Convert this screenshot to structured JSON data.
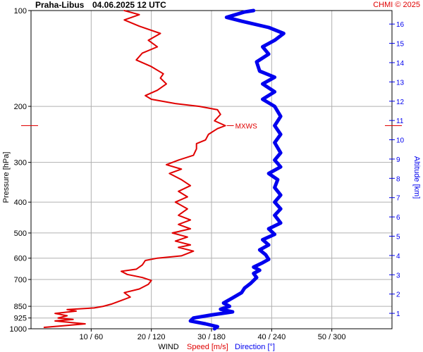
{
  "header": {
    "station": "Praha-Libus",
    "datetime": "04.06.2025 12 UTC",
    "credit": "CHMI © 2025"
  },
  "colors": {
    "speed": "#e00000",
    "direction": "#0000ee",
    "grid": "#b0b0b0",
    "axis": "#000000"
  },
  "chart_data": {
    "type": "line",
    "y_axis": {
      "label": "Pressure [hPa]",
      "scale": "log",
      "range": [
        1000,
        100
      ],
      "ticks": [
        100,
        200,
        300,
        400,
        500,
        600,
        700,
        850,
        925,
        1000
      ],
      "tick_labels": [
        "100",
        "200",
        "300",
        "400",
        "500",
        "600",
        "700",
        "850",
        "925",
        "1000"
      ]
    },
    "x_axis": {
      "label": "WIND",
      "range": [
        0,
        60
      ],
      "ticks": [
        10,
        20,
        30,
        40,
        50
      ],
      "tick_labels": [
        "10 / 60",
        "20 / 120",
        "30 / 180",
        "40 / 240",
        "50 / 300"
      ]
    },
    "y2_axis": {
      "label": "Altitude [km]",
      "range_km": [
        0.2,
        16.7
      ],
      "ticks": [
        1,
        2,
        3,
        4,
        5,
        6,
        7,
        8,
        9,
        10,
        11,
        12,
        13,
        14,
        15,
        16
      ],
      "tick_labels": [
        "1",
        "2",
        "3",
        "4",
        "5",
        "6",
        "7",
        "8",
        "9",
        "10",
        "11",
        "12",
        "13",
        "14",
        "15",
        "16"
      ]
    },
    "legend": {
      "speed_label": "Speed [m/s]",
      "direction_label": "Direction [°]"
    },
    "max_wind": {
      "label": "MXWS",
      "pressure": 230,
      "speed": 32.3
    },
    "series": [
      {
        "name": "Speed [m/s]",
        "color": "#e00000",
        "points": [
          [
            2.2,
            990
          ],
          [
            5.0,
            980
          ],
          [
            9.0,
            965
          ],
          [
            6.5,
            955
          ],
          [
            4.0,
            945
          ],
          [
            7.0,
            935
          ],
          [
            4.5,
            925
          ],
          [
            6.0,
            910
          ],
          [
            4.0,
            895
          ],
          [
            7.5,
            880
          ],
          [
            6.0,
            870
          ],
          [
            10.5,
            860
          ],
          [
            12.0,
            850
          ],
          [
            13.5,
            835
          ],
          [
            15.0,
            815
          ],
          [
            16.5,
            795
          ],
          [
            15.5,
            770
          ],
          [
            18.0,
            750
          ],
          [
            19.5,
            725
          ],
          [
            20.0,
            705
          ],
          [
            18.5,
            690
          ],
          [
            16.0,
            675
          ],
          [
            15.0,
            660
          ],
          [
            17.5,
            650
          ],
          [
            18.5,
            630
          ],
          [
            19.0,
            610
          ],
          [
            21.0,
            600
          ],
          [
            25.0,
            590
          ],
          [
            27.0,
            570
          ],
          [
            24.5,
            555
          ],
          [
            26.5,
            545
          ],
          [
            24.0,
            530
          ],
          [
            26.0,
            515
          ],
          [
            23.5,
            500
          ],
          [
            26.5,
            485
          ],
          [
            24.5,
            470
          ],
          [
            26.5,
            455
          ],
          [
            24.5,
            440
          ],
          [
            26.0,
            420
          ],
          [
            24.0,
            400
          ],
          [
            26.0,
            385
          ],
          [
            24.5,
            370
          ],
          [
            26.5,
            355
          ],
          [
            25.0,
            340
          ],
          [
            23.0,
            325
          ],
          [
            25.0,
            315
          ],
          [
            22.5,
            305
          ],
          [
            24.5,
            295
          ],
          [
            27.0,
            285
          ],
          [
            27.5,
            272
          ],
          [
            27.5,
            262
          ],
          [
            29.0,
            255
          ],
          [
            29.5,
            245
          ],
          [
            31.0,
            235
          ],
          [
            32.3,
            230
          ],
          [
            30.5,
            222
          ],
          [
            31.5,
            212
          ],
          [
            31.0,
            205
          ],
          [
            28.0,
            200
          ],
          [
            24.0,
            196
          ],
          [
            20.0,
            190
          ],
          [
            19.0,
            185
          ],
          [
            21.0,
            178
          ],
          [
            22.5,
            170
          ],
          [
            21.5,
            163
          ],
          [
            22.0,
            158
          ],
          [
            20.0,
            150
          ],
          [
            17.5,
            143
          ],
          [
            18.5,
            136
          ],
          [
            21.0,
            130
          ],
          [
            19.5,
            124
          ],
          [
            21.5,
            118
          ],
          [
            18.0,
            112
          ],
          [
            15.5,
            107
          ],
          [
            18.0,
            103
          ],
          [
            15.5,
            100
          ]
        ]
      },
      {
        "name": "Direction [°]",
        "color": "#0000ee",
        "points": [
          [
            30.5,
            1000
          ],
          [
            31.0,
            985
          ],
          [
            29.0,
            965
          ],
          [
            26.5,
            945
          ],
          [
            27.0,
            925
          ],
          [
            30.0,
            905
          ],
          [
            33.5,
            885
          ],
          [
            31.5,
            868
          ],
          [
            33.0,
            850
          ],
          [
            32.0,
            830
          ],
          [
            33.5,
            800
          ],
          [
            35.0,
            770
          ],
          [
            35.5,
            745
          ],
          [
            36.5,
            720
          ],
          [
            37.5,
            690
          ],
          [
            37.0,
            670
          ],
          [
            38.0,
            655
          ],
          [
            37.0,
            640
          ],
          [
            38.5,
            620
          ],
          [
            39.5,
            605
          ],
          [
            39.0,
            585
          ],
          [
            38.0,
            565
          ],
          [
            39.5,
            545
          ],
          [
            38.5,
            525
          ],
          [
            40.5,
            505
          ],
          [
            39.5,
            485
          ],
          [
            41.5,
            465
          ],
          [
            40.5,
            440
          ],
          [
            41.5,
            420
          ],
          [
            40.5,
            400
          ],
          [
            41.5,
            380
          ],
          [
            40.5,
            360
          ],
          [
            41.0,
            340
          ],
          [
            39.5,
            325
          ],
          [
            41.5,
            310
          ],
          [
            40.5,
            295
          ],
          [
            41.5,
            280
          ],
          [
            40.5,
            260
          ],
          [
            41.5,
            245
          ],
          [
            40.5,
            230
          ],
          [
            41.5,
            215
          ],
          [
            40.5,
            200
          ],
          [
            38.5,
            190
          ],
          [
            40.5,
            180
          ],
          [
            38.5,
            170
          ],
          [
            40.5,
            162
          ],
          [
            38.0,
            155
          ],
          [
            37.5,
            145
          ],
          [
            39.5,
            137
          ],
          [
            38.5,
            130
          ],
          [
            40.5,
            124
          ],
          [
            42.0,
            118
          ],
          [
            39.5,
            113
          ],
          [
            35.0,
            108
          ],
          [
            32.5,
            105
          ],
          [
            34.0,
            103
          ],
          [
            35.5,
            101
          ],
          [
            37.0,
            100
          ]
        ]
      }
    ]
  }
}
